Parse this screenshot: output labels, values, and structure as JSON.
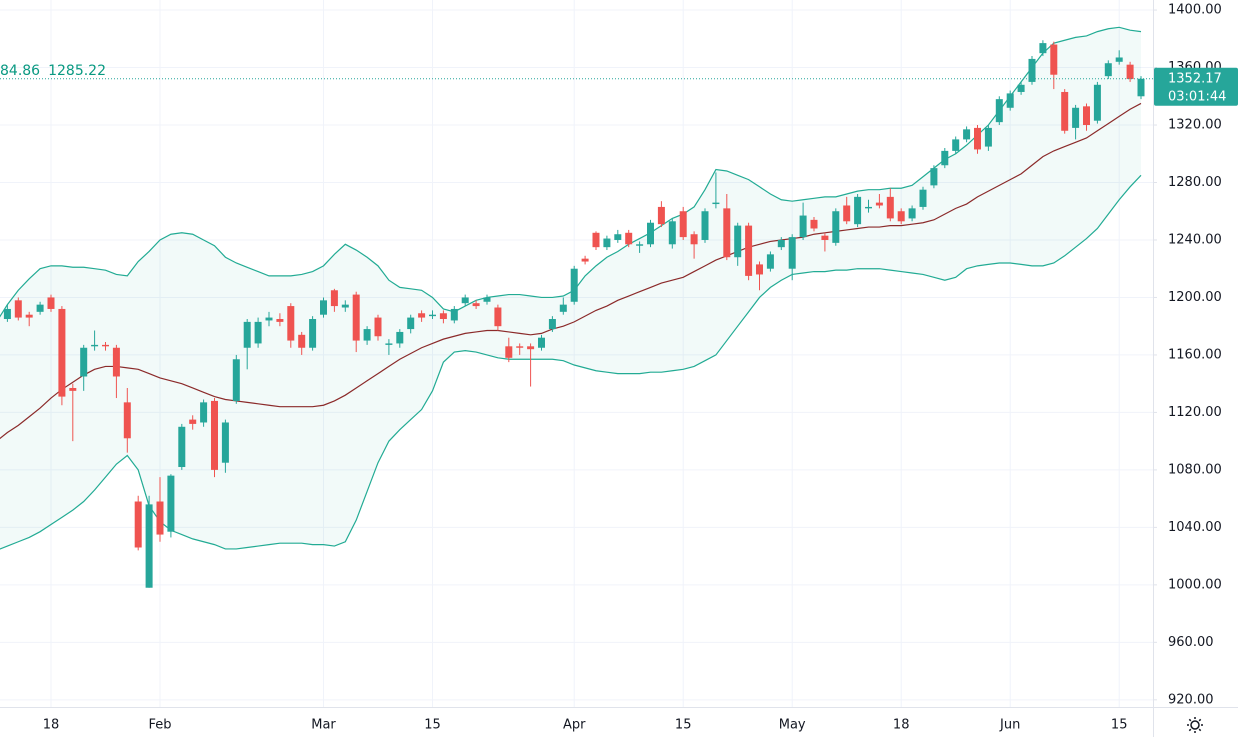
{
  "chart_data": {
    "type": "candlestick",
    "legend_values": [
      "84.86",
      "1285.22"
    ],
    "last_price": 1352.17,
    "countdown": "03:01:44",
    "up_color": "#26a69a",
    "down_color": "#ef5350",
    "band_fill": "#26a69a",
    "grid": true,
    "ylim": [
      915,
      1407
    ],
    "yticks": [
      {
        "value": 920,
        "label": "920.00"
      },
      {
        "value": 960,
        "label": "960.00"
      },
      {
        "value": 1000,
        "label": "1000.00"
      },
      {
        "value": 1040,
        "label": "1040.00"
      },
      {
        "value": 1080,
        "label": "1080.00"
      },
      {
        "value": 1120,
        "label": "1120.00"
      },
      {
        "value": 1160,
        "label": "1160.00"
      },
      {
        "value": 1200,
        "label": "1200.00"
      },
      {
        "value": 1240,
        "label": "1240.00"
      },
      {
        "value": 1280,
        "label": "1280.00"
      },
      {
        "value": 1320,
        "label": "1320.00"
      },
      {
        "value": 1360,
        "label": "1360.00"
      },
      {
        "value": 1400,
        "label": "1400.00"
      }
    ],
    "categories": [
      null,
      null,
      null,
      null,
      null,
      "18",
      null,
      null,
      null,
      null,
      null,
      null,
      null,
      null,
      null,
      "Feb",
      null,
      null,
      null,
      null,
      null,
      null,
      null,
      null,
      null,
      null,
      null,
      null,
      null,
      null,
      "Mar",
      null,
      null,
      null,
      null,
      null,
      null,
      null,
      null,
      null,
      "15",
      null,
      null,
      null,
      null,
      null,
      null,
      null,
      null,
      null,
      null,
      null,
      null,
      "Apr",
      null,
      null,
      null,
      null,
      null,
      null,
      null,
      null,
      null,
      "15",
      null,
      null,
      null,
      null,
      null,
      null,
      null,
      null,
      null,
      "May",
      null,
      null,
      null,
      null,
      null,
      null,
      null,
      null,
      null,
      "18",
      null,
      null,
      null,
      null,
      null,
      null,
      null,
      null,
      null,
      "Jun",
      null,
      null,
      null,
      null,
      null,
      null,
      null,
      null,
      null,
      "15",
      null,
      null
    ],
    "open": [
      1178,
      1185,
      1198,
      1188,
      1190,
      1200,
      1192,
      1137,
      1145,
      1166,
      1167,
      1165,
      1127,
      1058,
      998,
      1058,
      1037,
      1082,
      1115,
      1113,
      1128,
      1085,
      1128,
      1165,
      1168,
      1184,
      1185,
      1194,
      1174,
      1165,
      1188,
      1205,
      1193,
      1202,
      1170,
      1186,
      1167,
      1168,
      1178,
      1189,
      1187,
      1189,
      1184,
      1196,
      1196,
      1197,
      1193,
      1166,
      1166,
      1166,
      1165,
      1178,
      1190,
      1197,
      1227,
      1245,
      1235,
      1240,
      1245,
      1236,
      1237,
      1263,
      1237,
      1260,
      1244,
      1240,
      1265,
      1262,
      1228,
      1250,
      1223,
      1220,
      1235,
      1220,
      1242,
      1254,
      1243,
      1238,
      1264,
      1251,
      1262,
      1266,
      1270,
      1260,
      1255,
      1263,
      1278,
      1292,
      1302,
      1310,
      1318,
      1305,
      1322,
      1332,
      1343,
      1350,
      1370,
      1376,
      1343,
      1318,
      1333,
      1323,
      1354,
      1364,
      1362,
      1340
    ],
    "high": [
      1193,
      1195,
      1200,
      1190,
      1197,
      1202,
      1194,
      1140,
      1167,
      1177,
      1169,
      1167,
      1137,
      1062,
      1062,
      1075,
      1077,
      1112,
      1118,
      1129,
      1130,
      1115,
      1160,
      1185,
      1186,
      1190,
      1189,
      1196,
      1176,
      1187,
      1200,
      1206,
      1198,
      1204,
      1180,
      1188,
      1171,
      1178,
      1188,
      1191,
      1191,
      1191,
      1194,
      1202,
      1198,
      1202,
      1195,
      1172,
      1168,
      1168,
      1174,
      1187,
      1200,
      1222,
      1229,
      1246,
      1243,
      1247,
      1247,
      1239,
      1254,
      1267,
      1255,
      1263,
      1246,
      1262,
      1287,
      1272,
      1252,
      1252,
      1225,
      1232,
      1242,
      1244,
      1266,
      1256,
      1245,
      1262,
      1270,
      1272,
      1268,
      1272,
      1276,
      1262,
      1264,
      1277,
      1292,
      1304,
      1312,
      1319,
      1320,
      1320,
      1340,
      1344,
      1350,
      1368,
      1379,
      1378,
      1345,
      1334,
      1335,
      1350,
      1365,
      1372,
      1364,
      1354
    ],
    "low": [
      1175,
      1183,
      1184,
      1180,
      1188,
      1190,
      1125,
      1100,
      1135,
      1163,
      1163,
      1130,
      1092,
      1024,
      998,
      1030,
      1033,
      1080,
      1108,
      1110,
      1075,
      1078,
      1126,
      1150,
      1165,
      1180,
      1180,
      1165,
      1160,
      1163,
      1186,
      1190,
      1190,
      1162,
      1167,
      1170,
      1160,
      1165,
      1175,
      1183,
      1185,
      1182,
      1182,
      1194,
      1192,
      1195,
      1177,
      1155,
      1160,
      1138,
      1163,
      1176,
      1188,
      1195,
      1223,
      1233,
      1233,
      1238,
      1235,
      1231,
      1235,
      1249,
      1234,
      1240,
      1227,
      1238,
      1262,
      1226,
      1222,
      1212,
      1205,
      1218,
      1233,
      1212,
      1240,
      1246,
      1232,
      1236,
      1251,
      1249,
      1259,
      1262,
      1253,
      1251,
      1253,
      1261,
      1276,
      1290,
      1300,
      1308,
      1300,
      1302,
      1320,
      1330,
      1341,
      1348,
      1368,
      1345,
      1314,
      1310,
      1316,
      1321,
      1352,
      1362,
      1350,
      1338
    ],
    "close": [
      1190,
      1192,
      1186,
      1186,
      1195,
      1192,
      1131,
      1135,
      1165,
      1167,
      1166,
      1145,
      1102,
      1026,
      1056,
      1035,
      1076,
      1110,
      1112,
      1127,
      1080,
      1113,
      1157,
      1183,
      1183,
      1186,
      1183,
      1170,
      1165,
      1185,
      1198,
      1194,
      1195,
      1170,
      1178,
      1173,
      1168,
      1176,
      1186,
      1186,
      1188,
      1185,
      1192,
      1200,
      1194,
      1200,
      1180,
      1158,
      1165,
      1164,
      1172,
      1185,
      1195,
      1220,
      1225,
      1235,
      1241,
      1244,
      1237,
      1237,
      1252,
      1251,
      1253,
      1242,
      1237,
      1260,
      1266,
      1228,
      1250,
      1215,
      1216,
      1230,
      1240,
      1242,
      1257,
      1248,
      1240,
      1260,
      1253,
      1270,
      1263,
      1264,
      1255,
      1253,
      1262,
      1275,
      1290,
      1302,
      1310,
      1317,
      1303,
      1318,
      1338,
      1342,
      1348,
      1366,
      1377,
      1355,
      1316,
      1332,
      1320,
      1348,
      1363,
      1367,
      1352,
      1352.17
    ],
    "bands": [
      {
        "color": "#22ab94",
        "values": [
          1183,
          1195,
          1205,
          1213,
          1220,
          1222,
          1222,
          1221,
          1221,
          1220,
          1219,
          1216,
          1215,
          1225,
          1232,
          1240,
          1244,
          1245,
          1244,
          1240,
          1236,
          1228,
          1224,
          1221,
          1218,
          1215,
          1215,
          1215,
          1216,
          1218,
          1222,
          1230,
          1237,
          1233,
          1228,
          1222,
          1212,
          1207,
          1206,
          1205,
          1200,
          1192,
          1190,
          1194,
          1198,
          1200,
          1201,
          1202,
          1202,
          1201,
          1200,
          1200,
          1201,
          1205,
          1215,
          1222,
          1228,
          1232,
          1237,
          1241,
          1245,
          1250,
          1255,
          1258,
          1263,
          1275,
          1289,
          1288,
          1285,
          1282,
          1277,
          1272,
          1268,
          1267,
          1268,
          1269,
          1270,
          1270,
          1272,
          1274,
          1275,
          1275,
          1276,
          1276,
          1278,
          1284,
          1290,
          1296,
          1300,
          1306,
          1313,
          1320,
          1330,
          1340,
          1350,
          1360,
          1370,
          1377,
          1379,
          1381,
          1382,
          1385,
          1387,
          1388,
          1386,
          1385
        ]
      },
      {
        "color": "#8b2a2a",
        "values": [
          1100,
          1106,
          1111,
          1117,
          1123,
          1130,
          1136,
          1141,
          1146,
          1150,
          1152,
          1152,
          1151,
          1150,
          1147,
          1144,
          1142,
          1140,
          1137,
          1134,
          1131,
          1129,
          1128,
          1127,
          1126,
          1125,
          1124,
          1124,
          1124,
          1124,
          1125,
          1128,
          1132,
          1137,
          1142,
          1147,
          1152,
          1157,
          1161,
          1165,
          1168,
          1171,
          1173,
          1175,
          1176,
          1177,
          1177,
          1176,
          1175,
          1174,
          1175,
          1178,
          1180,
          1183,
          1187,
          1191,
          1194,
          1198,
          1201,
          1204,
          1207,
          1210,
          1212,
          1214,
          1218,
          1222,
          1226,
          1229,
          1232,
          1235,
          1237,
          1239,
          1240,
          1241,
          1242,
          1244,
          1245,
          1246,
          1247,
          1248,
          1249,
          1249,
          1250,
          1250,
          1251,
          1252,
          1254,
          1258,
          1262,
          1265,
          1270,
          1274,
          1278,
          1282,
          1286,
          1292,
          1298,
          1302,
          1305,
          1308,
          1311,
          1316,
          1321,
          1326,
          1331,
          1335
        ]
      },
      {
        "color": "#22ab94",
        "values": [
          1024,
          1027,
          1030,
          1033,
          1037,
          1042,
          1047,
          1052,
          1058,
          1066,
          1075,
          1084,
          1090,
          1080,
          1055,
          1044,
          1038,
          1035,
          1032,
          1030,
          1028,
          1025,
          1025,
          1026,
          1027,
          1028,
          1029,
          1029,
          1029,
          1028,
          1028,
          1027,
          1030,
          1045,
          1065,
          1085,
          1100,
          1108,
          1115,
          1122,
          1135,
          1155,
          1162,
          1163,
          1162,
          1160,
          1158,
          1157,
          1157,
          1157,
          1157,
          1157,
          1156,
          1153,
          1151,
          1149,
          1148,
          1147,
          1147,
          1147,
          1148,
          1148,
          1149,
          1150,
          1152,
          1156,
          1160,
          1170,
          1180,
          1190,
          1200,
          1207,
          1212,
          1216,
          1217,
          1218,
          1218,
          1219,
          1219,
          1220,
          1220,
          1220,
          1219,
          1218,
          1217,
          1216,
          1214,
          1212,
          1214,
          1220,
          1222,
          1223,
          1224,
          1224,
          1223,
          1222,
          1222,
          1224,
          1229,
          1235,
          1241,
          1248,
          1258,
          1268,
          1277,
          1285
        ]
      }
    ]
  }
}
